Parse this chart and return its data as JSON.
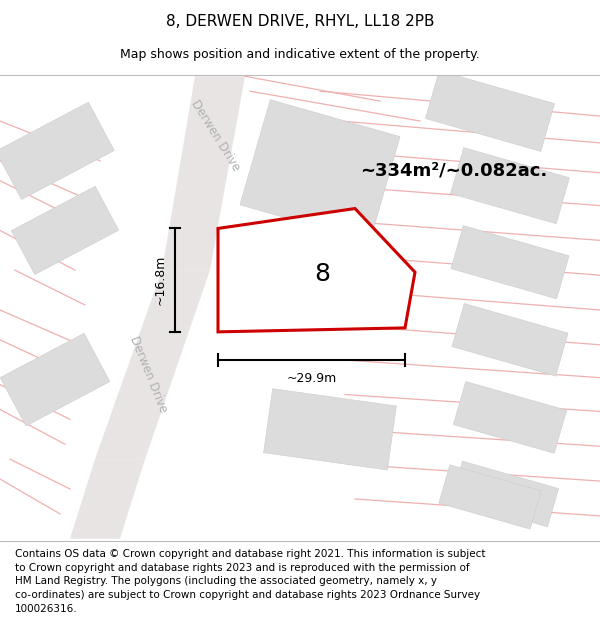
{
  "title": "8, DERWEN DRIVE, RHYL, LL18 2PB",
  "subtitle": "Map shows position and indicative extent of the property.",
  "footer_line1": "Contains OS data © Crown copyright and database right 2021. This information is subject",
  "footer_line2": "to Crown copyright and database rights 2023 and is reproduced with the permission of",
  "footer_line3": "HM Land Registry. The polygons (including the associated geometry, namely x, y",
  "footer_line4": "co-ordinates) are subject to Crown copyright and database rights 2023 Ordnance Survey",
  "footer_line5": "100026316.",
  "area_label": "~334m²/~0.082ac.",
  "number_label": "8",
  "dim_width": "~29.9m",
  "dim_height": "~16.8m",
  "road_label": "Derwen Drive",
  "map_bg": "#f4f2f2",
  "plot_fill": "#ffffff",
  "plot_edge": "#cc0000",
  "road_fill": "#e8e4e4",
  "building_fill": "#dcdcdc",
  "light_red": "#f0b0b0",
  "dim_color": "#000000",
  "title_fs": 11,
  "subtitle_fs": 9,
  "area_fs": 13,
  "num_fs": 18,
  "dim_fs": 9,
  "road_fs": 8.5,
  "footer_fs": 7.5
}
